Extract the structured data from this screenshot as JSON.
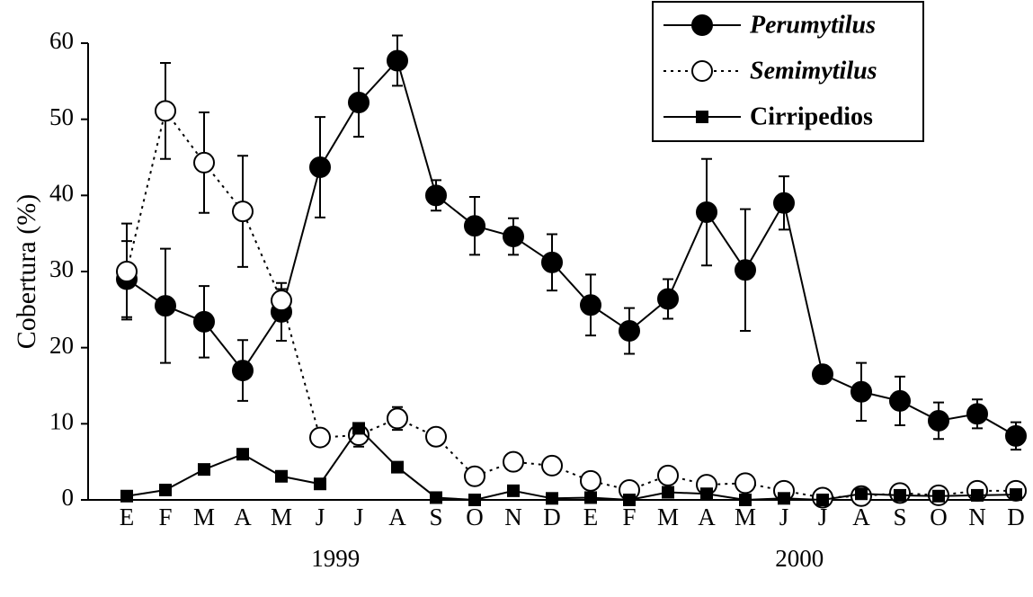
{
  "chart_data": {
    "type": "line",
    "y_label": "Cobertura (%)",
    "categories": [
      "E",
      "F",
      "M",
      "A",
      "M",
      "J",
      "J",
      "A",
      "S",
      "O",
      "N",
      "D",
      "E",
      "F",
      "M",
      "A",
      "M",
      "J",
      "J",
      "A",
      "S",
      "O",
      "N",
      "D"
    ],
    "year_labels": [
      "1999",
      "2000"
    ],
    "ylim": [
      0,
      60
    ],
    "yticks": [
      0,
      10,
      20,
      30,
      40,
      50,
      60
    ],
    "legend": "upper right",
    "series": [
      {
        "name": "Perumytilus",
        "color": "#000",
        "marker": "circle-filled",
        "dash": "solid",
        "name_style": "italic",
        "values": [
          29.0,
          25.5,
          23.4,
          17.0,
          24.7,
          43.7,
          52.2,
          57.7,
          40.0,
          36.0,
          34.6,
          31.2,
          25.6,
          22.2,
          26.4,
          37.8,
          30.2,
          39.0,
          16.5,
          14.2,
          13.0,
          10.4,
          11.3,
          8.4
        ],
        "errors": [
          5.0,
          7.5,
          4.7,
          4.0,
          3.8,
          6.6,
          4.5,
          3.3,
          2.0,
          3.8,
          2.4,
          3.7,
          4.0,
          3.0,
          2.6,
          7.0,
          8.0,
          3.5,
          0.5,
          3.8,
          3.2,
          2.4,
          1.9,
          1.8
        ]
      },
      {
        "name": "Semimytilus",
        "color": "#000",
        "marker": "circle-open",
        "dash": "dotted",
        "name_style": "italic",
        "values": [
          30.0,
          51.1,
          44.3,
          37.9,
          26.2,
          8.2,
          8.5,
          10.7,
          8.3,
          3.1,
          5.0,
          4.5,
          2.5,
          1.3,
          3.2,
          2.0,
          2.2,
          1.2,
          0.3,
          0.5,
          0.9,
          0.6,
          1.2,
          1.2
        ],
        "errors": [
          6.3,
          6.3,
          6.6,
          7.3,
          1.5,
          0.5,
          1.5,
          1.5,
          0.5,
          0.5,
          0.5,
          0.5,
          0.3,
          0.3,
          0.3,
          0.3,
          0.3,
          0.3,
          0.3,
          0.3,
          0.3,
          0.3,
          0.3,
          0.3
        ]
      },
      {
        "name": "Cirripedios",
        "color": "#000",
        "marker": "square",
        "dash": "solid",
        "name_style": "normal",
        "values": [
          0.5,
          1.3,
          4.0,
          6.0,
          3.1,
          2.1,
          9.4,
          4.3,
          0.3,
          0,
          1.2,
          0.2,
          0.3,
          0,
          1.0,
          0.8,
          0,
          0.2,
          0,
          0.8,
          0.6,
          0.5,
          0.6,
          0.7
        ],
        "errors": [
          0.2,
          0.3,
          0.4,
          0.4,
          0.3,
          0.3,
          0.6,
          0.3,
          0.2,
          0.2,
          0.3,
          0.2,
          0.2,
          0.2,
          0.3,
          0.3,
          0.2,
          0.2,
          0.2,
          0.2,
          0.2,
          0.2,
          0.2,
          0.2
        ]
      }
    ]
  }
}
